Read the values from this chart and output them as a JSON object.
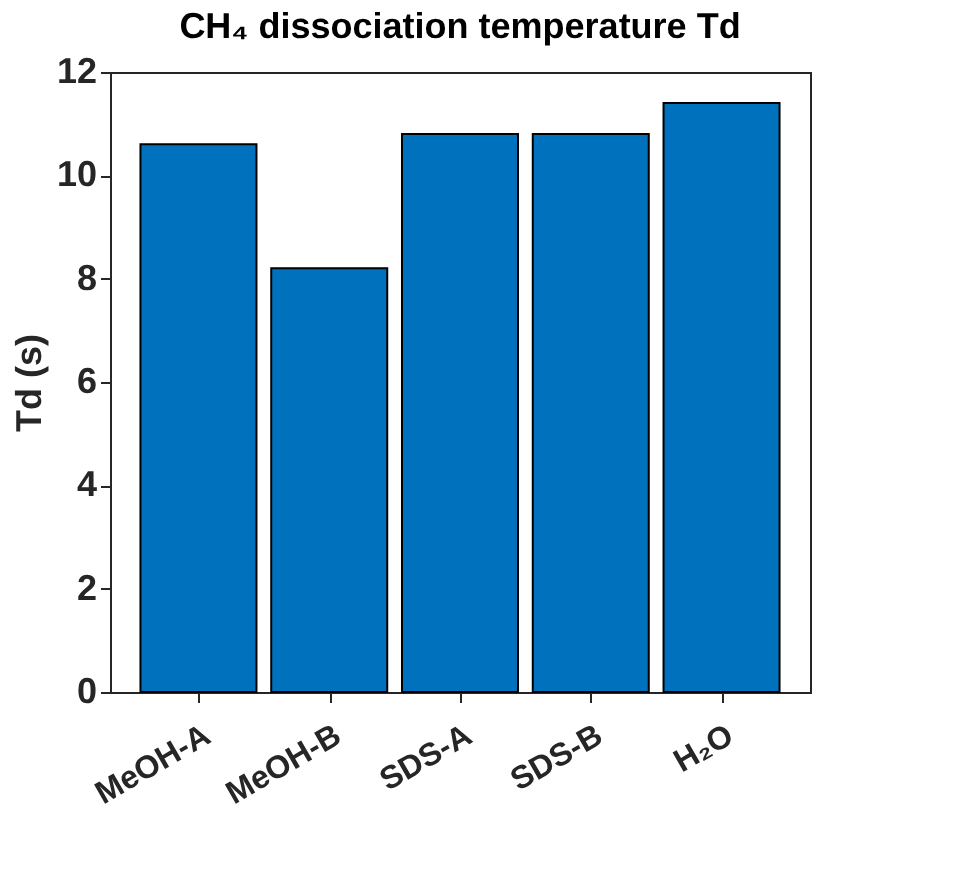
{
  "chart_data": {
    "type": "bar",
    "title": "CH₄ dissociation temperature Td",
    "ylabel": "Td (s)",
    "categories": [
      "MeOH-A",
      "MeOH-B",
      "SDS-A",
      "SDS-B",
      "H₂O"
    ],
    "values": [
      10.6,
      8.2,
      10.8,
      10.8,
      11.4
    ],
    "color": "#0072bd",
    "ylim": [
      0,
      12
    ],
    "yticks": [
      0,
      2,
      4,
      6,
      8,
      10,
      12
    ],
    "grid": false
  }
}
